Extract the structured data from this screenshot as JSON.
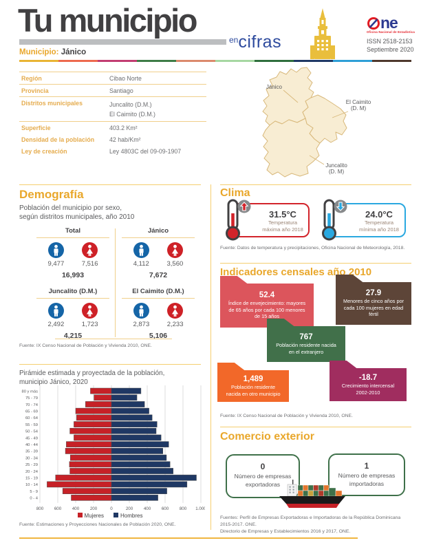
{
  "header": {
    "title": "Tu municipio",
    "tagline_en": "en",
    "tagline_cifras": "cifras",
    "municipality_label": "Municipio:",
    "municipality_name": "Jánico",
    "logo_ne": "ne",
    "logo_sub": "Oficina Nacional de Estadística",
    "issn": "ISSN 2518-2153",
    "date": "Septiembre 2020",
    "divider_colors": [
      "#E9B434",
      "#ED6A4E",
      "#C23D72",
      "#3E7C47",
      "#DB8A6C",
      "#A6D7A2",
      "#2F6E3D",
      "#1F3864",
      "#2E9FD6",
      "#4E382C"
    ]
  },
  "info_table": {
    "rows": [
      {
        "label": "Región",
        "value": "Cibao Norte"
      },
      {
        "label": "Provincia",
        "value": "Santiago"
      },
      {
        "label": "Distritos municipales",
        "value": "Juncalito (D.M.)",
        "value2": "El Caimito (D.M.)"
      },
      {
        "label": "Superficie",
        "value": "403.2 Km²"
      },
      {
        "label": "Densidad de la población",
        "value": "42 hab/Km²"
      },
      {
        "label": "Ley de creación",
        "value": "Ley 4803C del 09-09-1907"
      }
    ]
  },
  "map": {
    "janico": "Jánico",
    "caimito_line1": "El Caimito",
    "caimito_line2": "(D. M)",
    "juncalito_line1": "Juncalito",
    "juncalito_line2": "(D. M)"
  },
  "demografia": {
    "title": "Demografía",
    "subtitle_line1": "Población del municipio por sexo,",
    "subtitle_line2": "según distritos municipales, año 2010",
    "groups": [
      {
        "name": "Total",
        "male": "9,477",
        "female": "7,516",
        "total": "16,993"
      },
      {
        "name": "Jánico",
        "male": "4,112",
        "female": "3,560",
        "total": "7,672"
      },
      {
        "name": "Juncalito (D.M.)",
        "male": "2,492",
        "female": "1,723",
        "total": "4,215"
      },
      {
        "name": "El Caimito (D.M.)",
        "male": "2,873",
        "female": "2,233",
        "total": "5,106"
      }
    ],
    "source": "Fuente: IX Censo Nacional de Población y Vivienda 2010, ONE."
  },
  "piramide": {
    "title_line1": "Pirámide estimada y proyectada de la población,",
    "title_line2": "municipio Jánico, 2020",
    "source": "Fuente: Estimaciones y Proyecciones Nacionales de Población 2020, ONE."
  },
  "chart_data": {
    "type": "bar",
    "subtype": "population-pyramid",
    "title": "Pirámide estimada y proyectada de la población, municipio Jánico, 2020",
    "categories": [
      "0 - 4",
      "5 - 9",
      "10 - 14",
      "15 - 19",
      "20 - 24",
      "25 - 29",
      "30 - 34",
      "35 - 39",
      "40 - 44",
      "45 - 49",
      "50 - 54",
      "55 - 59",
      "60 - 64",
      "65 - 69",
      "70 - 74",
      "75 - 79",
      "80 y más"
    ],
    "series": [
      {
        "name": "Mujeres",
        "color": "#C62127",
        "values": [
          450,
          545,
          720,
          625,
          465,
          470,
          460,
          515,
          505,
          420,
          465,
          420,
          390,
          400,
          290,
          195,
          235
        ]
      },
      {
        "name": "Hombres",
        "color": "#1F3864",
        "values": [
          520,
          620,
          845,
          950,
          690,
          655,
          615,
          575,
          640,
          555,
          500,
          510,
          455,
          420,
          370,
          285,
          330
        ]
      }
    ],
    "xlim": [
      -800,
      1000
    ],
    "tick_values": [
      -800,
      -600,
      -400,
      -200,
      0,
      200,
      400,
      600,
      800,
      1000
    ],
    "tick_labels": [
      "800",
      "600",
      "400",
      "200",
      "0",
      "200",
      "400",
      "600",
      "800",
      "1.000"
    ],
    "grid": true,
    "legend_position": "bottom"
  },
  "clima": {
    "title": "Clima",
    "cards": [
      {
        "value": "31.5°C",
        "line1": "Temperatura",
        "line2": "máxima año 2018",
        "color": "#D2232A"
      },
      {
        "value": "24.0°C",
        "line1": "Temperatura",
        "line2": "mínima año 2018",
        "color": "#29A8E0"
      }
    ],
    "source": "Fuente: Datos de temperatura y precipitaciones, Oficina Nacional de Meteorología, 2018."
  },
  "indicadores": {
    "title": "Indicadores censales año 2010",
    "boxes": [
      {
        "value": "52.4",
        "text": "Índice de envejecimiento: mayores de 65 años por cada 100 menores de 15 años",
        "color": "#DC555C"
      },
      {
        "value": "27.9",
        "text": "Menores de cinco años por cada 100 mujeres en edad fértil",
        "color": "#5D4538"
      },
      {
        "value": "767",
        "text": "Población residente nacida en el extranjero",
        "color": "#41704A"
      },
      {
        "value": "1,489",
        "text": "Población residente nacida en otro municipio",
        "color": "#F26829"
      },
      {
        "value": "-18.7",
        "text": "Crecimiento intercensal 2002-2010",
        "color": "#A02D5F"
      }
    ],
    "source": "Fuente: IX Censo Nacional de Población y Vivienda 2010, ONE."
  },
  "comercio": {
    "title": "Comercio exterior",
    "cards": [
      {
        "value": "0",
        "line1": "Número de empresas",
        "line2": "exportadoras"
      },
      {
        "value": "1",
        "line1": "Número de empresas",
        "line2": "importadoras"
      }
    ],
    "source_line1": "Fuentes: Perfil de Empresas Exportadoras e Importadoras de la República Dominicana",
    "source_line2": "2015-2017. ONE.",
    "source_line3": "Directorio de Empresas y Establecimientos 2016 y 2017, ONE."
  }
}
